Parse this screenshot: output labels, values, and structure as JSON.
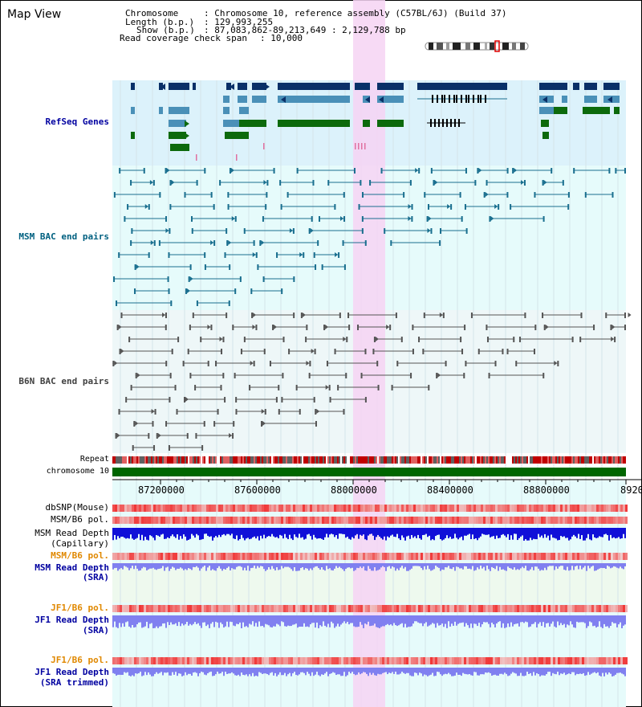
{
  "title": "Map View",
  "info": {
    "chromosome_label": "Chromosome",
    "chromosome_value": ": Chromosome 10, reference assembly (C57BL/6J) (Build 37)",
    "length_label": "Length (b.p.)",
    "length_value": ": 129,993,255",
    "show_label": "Show (b.p.)",
    "show_value": ": 87,083,862-89,213,649 : 2,129,788 bp",
    "coverage_label": "Read coverage check span",
    "coverage_value": ": 10,000"
  },
  "tracks": {
    "refseq": "RefSeq Genes",
    "msm_bac": "MSM BAC end pairs",
    "b6n_bac": "B6N BAC end pairs",
    "repeat": "Repeat",
    "chromosome": "chromosome 10",
    "dbsnp": "dbSNP(Mouse)",
    "msm_b6_pol_1": "MSM/B6 pol.",
    "msm_depth_cap_1": "MSM Read Depth",
    "msm_depth_cap_2": "(Capillary)",
    "msm_b6_pol_2": "MSM/B6 pol.",
    "msm_depth_sra_1": "MSM Read Depth",
    "msm_depth_sra_2": "(SRA)",
    "jf1_b6_pol_1": "JF1/B6 pol.",
    "jf1_depth_sra_1": "JF1 Read Depth",
    "jf1_depth_sra_2": "(SRA)",
    "jf1_b6_pol_2": "JF1/B6 pol.",
    "jf1_depth_trim_1": "JF1 Read Depth",
    "jf1_depth_trim_2": "(SRA trimmed)"
  },
  "axis": {
    "ticks": [
      "87200000",
      "87600000",
      "88000000",
      "88400000",
      "88800000",
      "8920"
    ]
  },
  "colors": {
    "highlight": "#f6d3f3",
    "refseq_bg": "#dcf2fb",
    "msm_bg": "#e6fbfb",
    "b6n_bg": "#eef7f8",
    "lower_bg": "#e6fbfb",
    "gene_dark": "#0a3068",
    "gene_mid": "#4a90b8",
    "gene_green": "#0c6a0c",
    "msm_line": "#1a6f8f",
    "b6n_line": "#555555",
    "chrom_bar": "#006600",
    "depth_dark": "#1010d8",
    "depth_light": "#8080f0",
    "label_blue": "#0000a0",
    "label_msm": "#006080",
    "label_gray": "#404040",
    "label_orange": "#e08800"
  }
}
